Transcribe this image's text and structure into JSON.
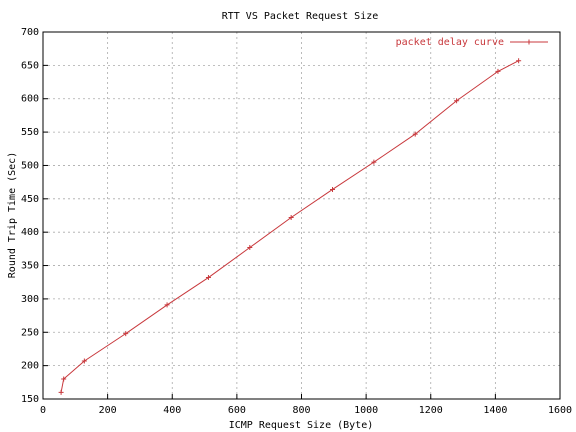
{
  "chart_data": {
    "type": "line",
    "title": "RTT VS Packet Request Size",
    "xlabel": "ICMP Request Size (Byte)",
    "ylabel": "Round Trip Time (Sec)",
    "x": [
      56,
      64,
      128,
      256,
      384,
      512,
      640,
      768,
      896,
      1024,
      1152,
      1280,
      1408,
      1472
    ],
    "series": [
      {
        "name": "packet delay curve",
        "color": "#c8383c",
        "values": [
          160,
          180,
          207,
          248,
          291,
          332,
          377,
          422,
          464,
          505,
          547,
          597,
          641,
          657
        ]
      }
    ],
    "xlim": [
      0,
      1600
    ],
    "xticks": [
      0,
      200,
      400,
      600,
      800,
      1000,
      1200,
      1400,
      1600
    ],
    "ylim": [
      150,
      700
    ],
    "yticks": [
      150,
      200,
      250,
      300,
      350,
      400,
      450,
      500,
      550,
      600,
      650,
      700
    ],
    "grid": true,
    "legend": "top-right"
  }
}
